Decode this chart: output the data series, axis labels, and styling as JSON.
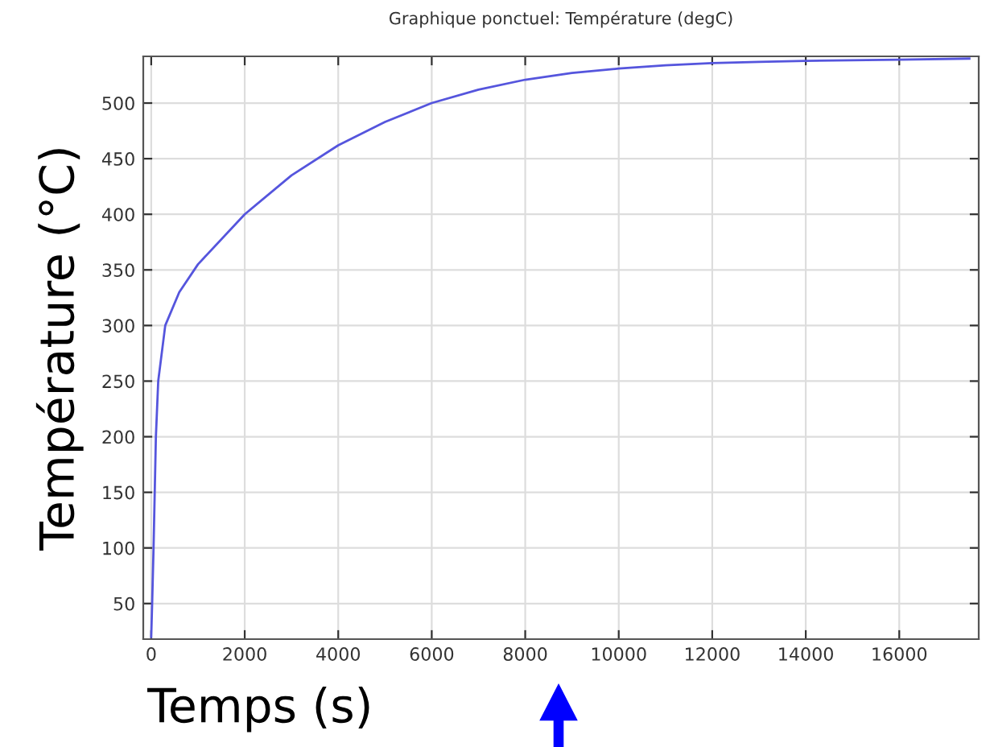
{
  "chart_data": {
    "type": "line",
    "title": "Graphique ponctuel: Température (degC)",
    "xlabel": "Temps (s)",
    "ylabel": "Température (°C)",
    "x": [
      0,
      20,
      50,
      100,
      150,
      300,
      600,
      1000,
      2000,
      3000,
      4000,
      5000,
      6000,
      7000,
      8000,
      9000,
      10000,
      11000,
      12000,
      13000,
      14000,
      16000,
      17500
    ],
    "series": [
      {
        "color": "#5555dd",
        "values": [
          20,
          50,
          100,
          200,
          250,
          300,
          330,
          355,
          400,
          435,
          462,
          483,
          500,
          512,
          521,
          527,
          531,
          534,
          536,
          537,
          538,
          539,
          540
        ]
      }
    ],
    "xlim": [
      -170,
      17700
    ],
    "ylim": [
      18,
      542
    ],
    "xticks": [
      0,
      2000,
      4000,
      6000,
      8000,
      10000,
      12000,
      14000,
      16000
    ],
    "yticks": [
      50,
      100,
      150,
      200,
      250,
      300,
      350,
      400,
      450,
      500
    ],
    "grid": true,
    "legend": false,
    "marker": "none",
    "line_style": "solid"
  }
}
